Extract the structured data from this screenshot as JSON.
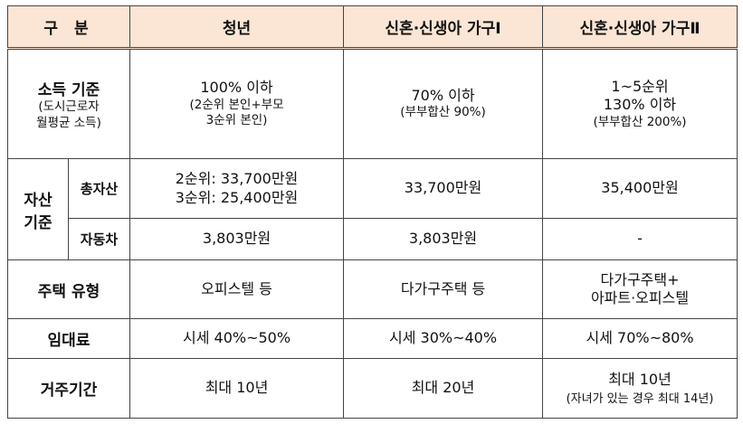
{
  "header": {
    "category": "구 분",
    "youth": "청년",
    "newlywed1": "신혼·신생아 가구Ⅰ",
    "newlywed2": "신혼·신생아 가구Ⅱ"
  },
  "income": {
    "label": "소득 기준",
    "label_sub1": "(도시근로자",
    "label_sub2": "월평균 소득)",
    "youth_main": "100% 이하",
    "youth_sub1": "(2순위 본인+부모",
    "youth_sub2": "3순위 본인)",
    "nw1_main": "70% 이하",
    "nw1_sub": "(부부합산 90%)",
    "nw2_line1": "1~5순위",
    "nw2_line2": "130% 이하",
    "nw2_sub": "(부부합산 200%)"
  },
  "assets": {
    "label1": "자산",
    "label2": "기준",
    "total_label": "총자산",
    "total_youth1": "2순위: 33,700만원",
    "total_youth2": "3순위: 25,400만원",
    "total_nw1": "33,700만원",
    "total_nw2": "35,400만원",
    "car_label": "자동차",
    "car_youth": "3,803만원",
    "car_nw1": "3,803만원",
    "car_nw2": "-"
  },
  "housing": {
    "label": "주택 유형",
    "youth": "오피스텔 등",
    "nw1": "다가구주택 등",
    "nw2_line1": "다가구주택+",
    "nw2_line2": "아파트·오피스텔"
  },
  "rent": {
    "label": "임대료",
    "youth": "시세 40%~50%",
    "nw1": "시세 30%~40%",
    "nw2": "시세 70%~80%"
  },
  "period": {
    "label": "거주기간",
    "youth": "최대 10년",
    "nw1": "최대 20년",
    "nw2_main": "최대 10년",
    "nw2_sub": "(자녀가 있는 경우 최대 14년)"
  }
}
